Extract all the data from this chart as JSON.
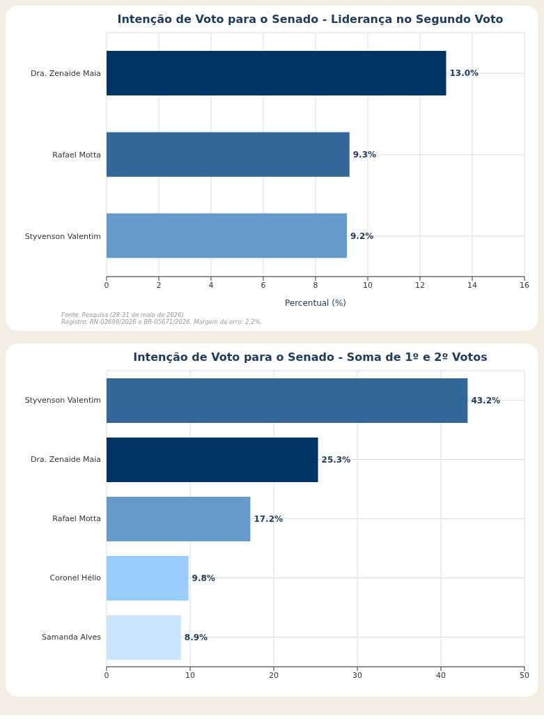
{
  "chart_data": [
    {
      "type": "bar",
      "orientation": "horizontal",
      "title": "Intenção de Voto para o Senado - Liderança no Segundo Voto",
      "xlabel": "Percentual (%)",
      "categories": [
        "Dra. Zenaide Maia",
        "Rafael Motta",
        "Styvenson Valentim"
      ],
      "values": [
        13.0,
        9.3,
        9.2
      ],
      "colors": [
        "#003366",
        "#336699",
        "#6699cc"
      ],
      "value_labels": [
        "13.0%",
        "9.3%",
        "9.2%"
      ],
      "xlim": [
        0,
        16
      ],
      "xticks": [
        0,
        2,
        4,
        6,
        8,
        10,
        12,
        14,
        16
      ],
      "grid": true,
      "annotations": [
        "Fonte: Pesquisa (28-31 de maio de 2026)",
        "Registro: RN-02699/2026 e BR-05671/2026. Margem de erro: 2,2%."
      ]
    },
    {
      "type": "bar",
      "orientation": "horizontal",
      "title": "Intenção de Voto para o Senado - Soma de 1º e 2º Votos",
      "categories": [
        "Styvenson Valentim",
        "Dra. Zenaide Maia",
        "Rafael Motta",
        "Coronel Hélio",
        "Samanda Alves"
      ],
      "values": [
        43.2,
        25.3,
        17.2,
        9.8,
        8.9
      ],
      "colors": [
        "#336699",
        "#003366",
        "#6699cc",
        "#99ccff",
        "#cce5ff"
      ],
      "value_labels": [
        "43.2%",
        "25.3%",
        "17.2%",
        "9.8%",
        "8.9%"
      ],
      "xlim": [
        0,
        50
      ],
      "xticks": [
        0,
        10,
        20,
        30,
        40,
        50
      ],
      "grid": true
    }
  ]
}
